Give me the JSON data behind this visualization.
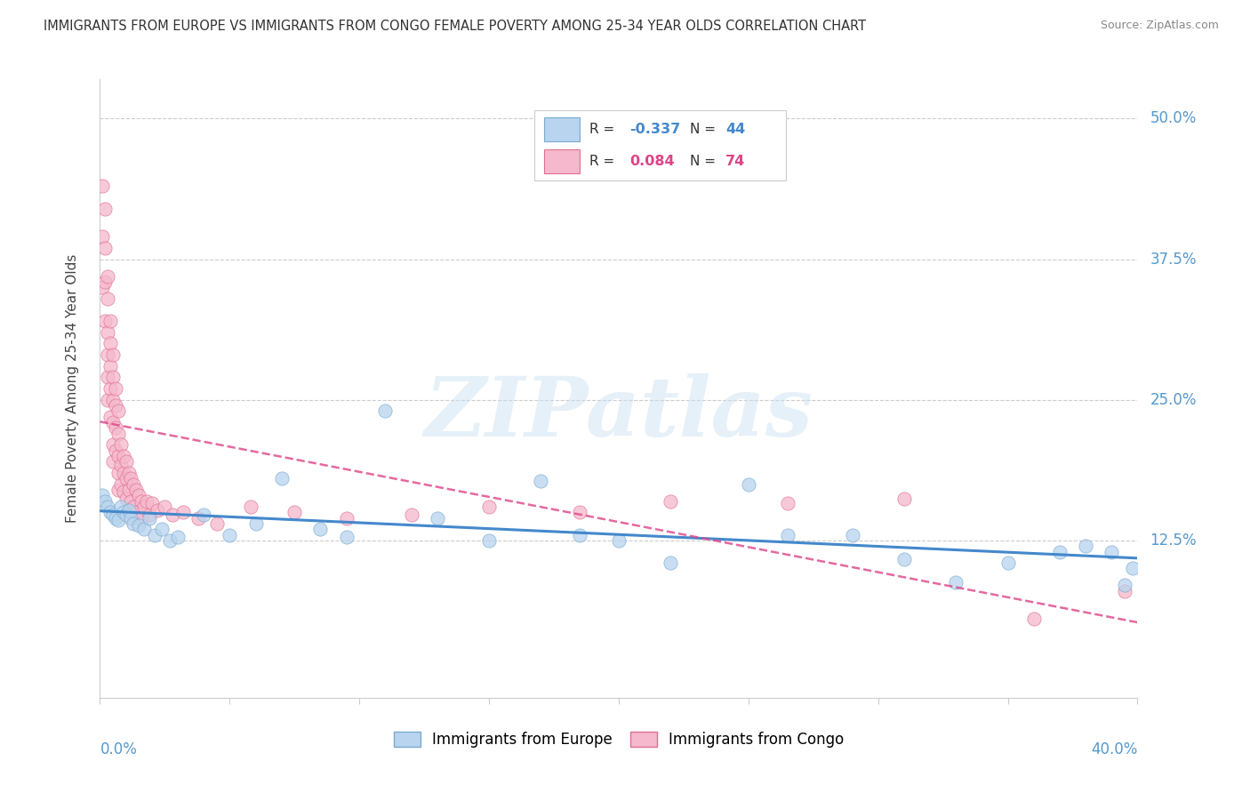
{
  "title": "IMMIGRANTS FROM EUROPE VS IMMIGRANTS FROM CONGO FEMALE POVERTY AMONG 25-34 YEAR OLDS CORRELATION CHART",
  "source": "Source: ZipAtlas.com",
  "ylabel": "Female Poverty Among 25-34 Year Olds",
  "ytick_values": [
    0.125,
    0.25,
    0.375,
    0.5
  ],
  "ytick_labels": [
    "12.5%",
    "25.0%",
    "37.5%",
    "50.0%"
  ],
  "xlim": [
    0.0,
    0.4
  ],
  "ylim": [
    -0.015,
    0.535
  ],
  "watermark": "ZIPatlas",
  "europe_color": "#b8d4ee",
  "europe_edge": "#7aaad0",
  "congo_color": "#f5b8cc",
  "congo_edge": "#e07090",
  "europe_line_color": "#4488cc",
  "congo_line_color": "#dd4488",
  "bg_color": "#ffffff",
  "grid_color": "#cccccc",
  "axis_label_color": "#5599cc",
  "title_color": "#333333",
  "source_color": "#888888",
  "marker_size": 120,
  "alpha": 0.75,
  "legend_box_color": "#f0f4f8",
  "legend_box_edge": "#cccccc",
  "eu_legend_R": "R = ",
  "eu_legend_Rval": "-0.337",
  "eu_legend_N": "N = ",
  "eu_legend_Nval": "44",
  "co_legend_R": "R = ",
  "co_legend_Rval": "0.084",
  "co_legend_N": "N = ",
  "co_legend_Nval": "74",
  "bottom_label_eu": "Immigrants from Europe",
  "bottom_label_co": "Immigrants from Congo"
}
